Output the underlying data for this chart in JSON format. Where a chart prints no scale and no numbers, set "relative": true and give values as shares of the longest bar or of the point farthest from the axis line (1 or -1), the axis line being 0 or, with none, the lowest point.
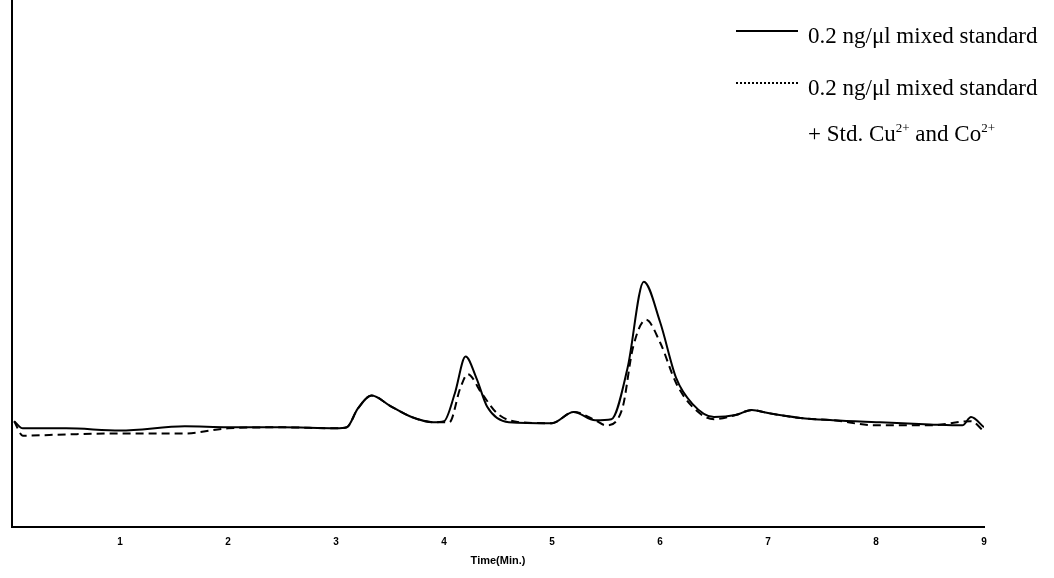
{
  "chart_data": {
    "type": "line",
    "relative": true,
    "xlabel": "Time(Min.)",
    "xlim": [
      0,
      9
    ],
    "xticks": [
      1,
      2,
      3,
      4,
      5,
      6,
      7,
      8,
      9
    ],
    "legend": "top right",
    "marker": "none",
    "grid": false,
    "series": [
      {
        "name": "0.2 ng/μl mixed standard",
        "color": "#000000",
        "line_style": "solid",
        "x": [
          0.02,
          0.1,
          0.5,
          1.0,
          1.6,
          2.0,
          2.5,
          3.0,
          3.1,
          3.2,
          3.33,
          3.5,
          3.7,
          3.9,
          4.0,
          4.1,
          4.2,
          4.3,
          4.4,
          4.6,
          5.0,
          5.2,
          5.4,
          5.55,
          5.7,
          5.85,
          6.0,
          6.15,
          6.3,
          6.5,
          6.7,
          6.85,
          7.0,
          7.3,
          7.6,
          8.0,
          8.5,
          8.8,
          8.88,
          9.0
        ],
        "values": [
          0.431,
          0.402,
          0.402,
          0.393,
          0.41,
          0.406,
          0.406,
          0.402,
          0.406,
          0.481,
          0.536,
          0.494,
          0.448,
          0.427,
          0.431,
          0.544,
          0.695,
          0.607,
          0.49,
          0.427,
          0.423,
          0.469,
          0.435,
          0.439,
          0.649,
          1,
          0.837,
          0.607,
          0.502,
          0.448,
          0.456,
          0.477,
          0.464,
          0.444,
          0.435,
          0.427,
          0.418,
          0.414,
          0.448,
          0.406
        ]
      },
      {
        "name": "0.2 ng/μl mixed standard + Std. Cu$^{2+}$ and Co$^{2+}$",
        "color": "#000000",
        "line_style": "dashed",
        "x": [
          0.02,
          0.1,
          0.5,
          1.0,
          1.6,
          2.0,
          2.5,
          3.0,
          3.1,
          3.2,
          3.33,
          3.5,
          3.7,
          3.9,
          4.05,
          4.15,
          4.22,
          4.35,
          4.5,
          4.7,
          5.0,
          5.2,
          5.4,
          5.5,
          5.65,
          5.75,
          5.87,
          6.0,
          6.15,
          6.3,
          6.5,
          6.7,
          6.85,
          7.0,
          7.3,
          7.6,
          8.0,
          8.5,
          8.88,
          9.0
        ],
        "values": [
          0.431,
          0.372,
          0.377,
          0.381,
          0.381,
          0.402,
          0.406,
          0.402,
          0.406,
          0.481,
          0.536,
          0.494,
          0.448,
          0.427,
          0.427,
          0.565,
          0.623,
          0.544,
          0.46,
          0.427,
          0.423,
          0.469,
          0.435,
          0.414,
          0.481,
          0.732,
          0.845,
          0.753,
          0.586,
          0.49,
          0.439,
          0.456,
          0.477,
          0.464,
          0.444,
          0.435,
          0.414,
          0.414,
          0.431,
          0.389
        ]
      }
    ]
  }
}
